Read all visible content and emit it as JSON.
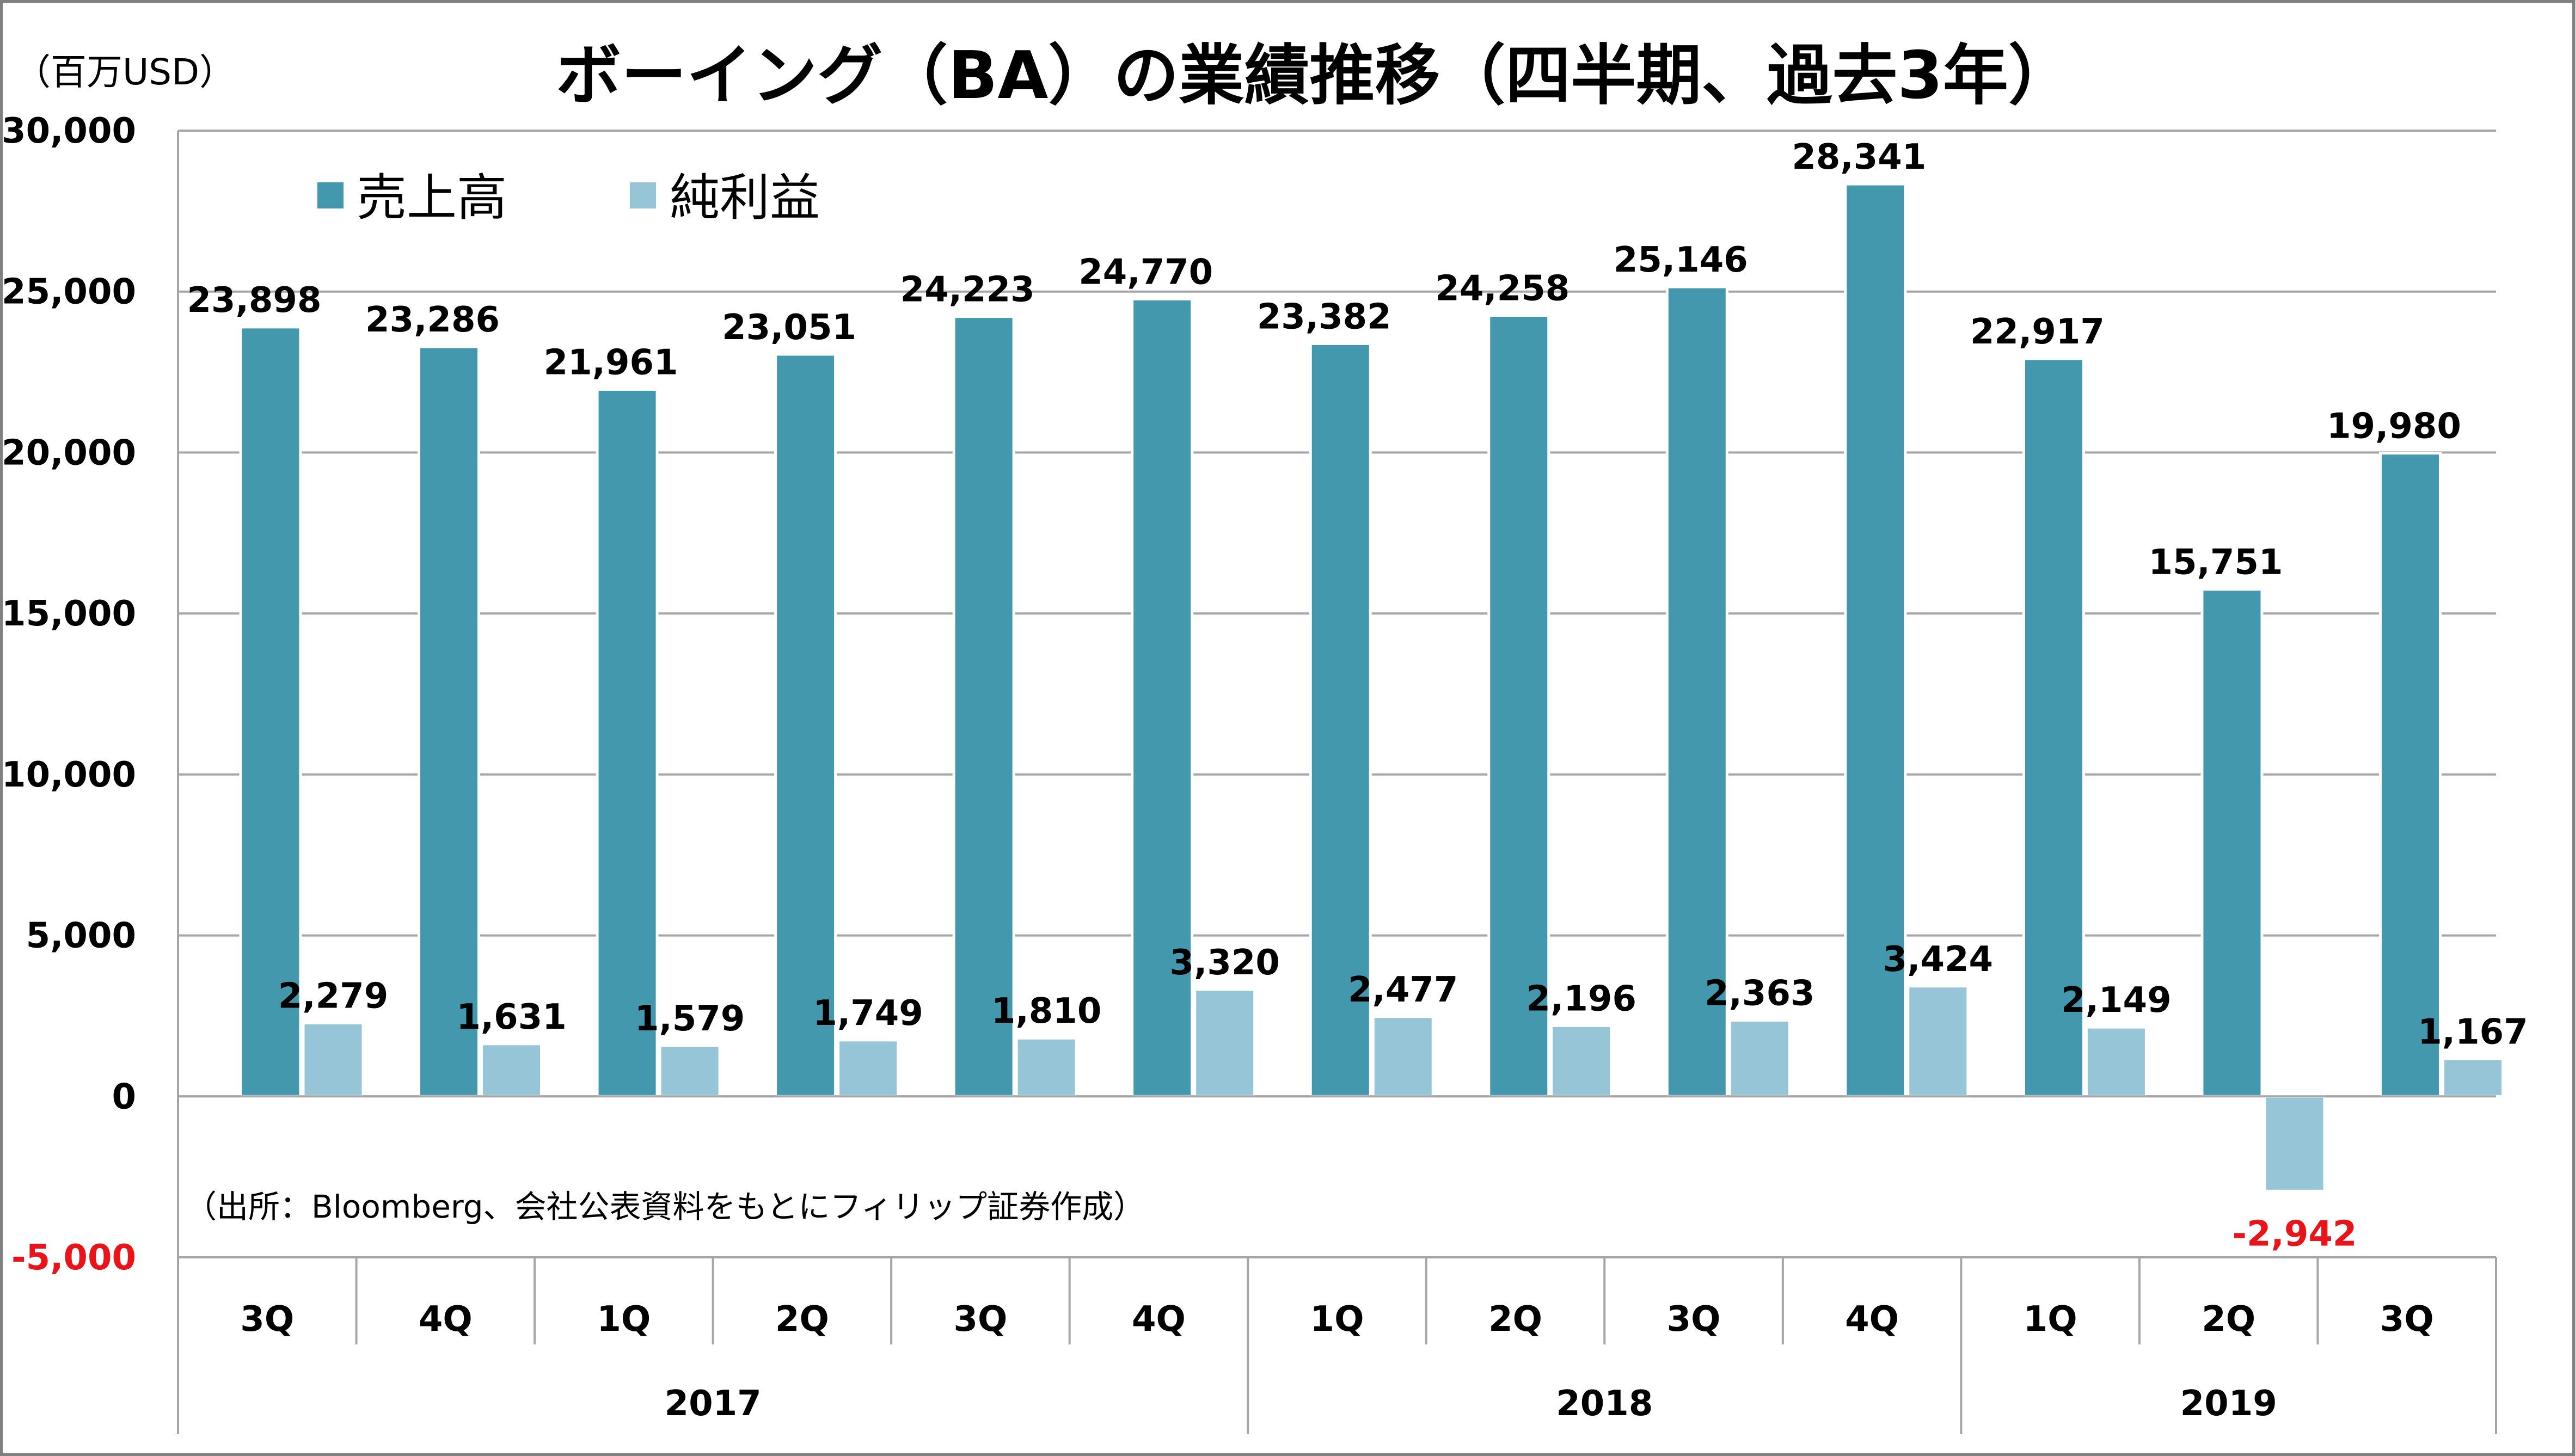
{
  "title": "ボーイング（BA）の業績推移（四半期、過去3年）",
  "unit_label": "（百万USD）",
  "source_note": "（出所：Bloomberg、会社公表資料をもとにフィリップ証券作成）",
  "colors": {
    "revenue": "#4398AD",
    "net_income": "#95C5D6",
    "negative_label": "#E8141A",
    "grid": "#A6A6A6",
    "axis_text": "#000000"
  },
  "chart_data": {
    "type": "bar",
    "title": "ボーイング（BA）の業績推移（四半期、過去3年）",
    "ylabel": "（百万USD）",
    "xlabel": "",
    "ylim": [
      -5000,
      30000
    ],
    "yticks": [
      -5000,
      0,
      5000,
      10000,
      15000,
      20000,
      25000,
      30000
    ],
    "ytick_labels": [
      "-5,000",
      "0",
      "5,000",
      "10,000",
      "15,000",
      "20,000",
      "25,000",
      "30,000"
    ],
    "grid": true,
    "legend_position": "top-left",
    "categories": [
      "3Q",
      "4Q",
      "1Q",
      "2Q",
      "3Q",
      "4Q",
      "1Q",
      "2Q",
      "3Q",
      "4Q",
      "1Q",
      "2Q",
      "3Q"
    ],
    "year_groups": [
      {
        "label": "2017",
        "start": 0,
        "end": 5
      },
      {
        "label": "2018",
        "start": 6,
        "end": 9
      },
      {
        "label": "2019",
        "start": 10,
        "end": 12
      }
    ],
    "series": [
      {
        "name": "売上高",
        "values": [
          23898,
          23286,
          21961,
          23051,
          24223,
          24770,
          23382,
          24258,
          25146,
          28341,
          22917,
          15751,
          19980
        ],
        "labels": [
          "23,898",
          "23,286",
          "21,961",
          "23,051",
          "24,223",
          "24,770",
          "23,382",
          "24,258",
          "25,146",
          "28,341",
          "22,917",
          "15,751",
          "19,980"
        ]
      },
      {
        "name": "純利益",
        "values": [
          2279,
          1631,
          1579,
          1749,
          1810,
          3320,
          2477,
          2196,
          2363,
          3424,
          2149,
          -2942,
          1167
        ],
        "labels": [
          "2,279",
          "1,631",
          "1,579",
          "1,749",
          "1,810",
          "3,320",
          "2,477",
          "2,196",
          "2,363",
          "3,424",
          "2,149",
          "-2,942",
          "1,167"
        ]
      }
    ]
  }
}
